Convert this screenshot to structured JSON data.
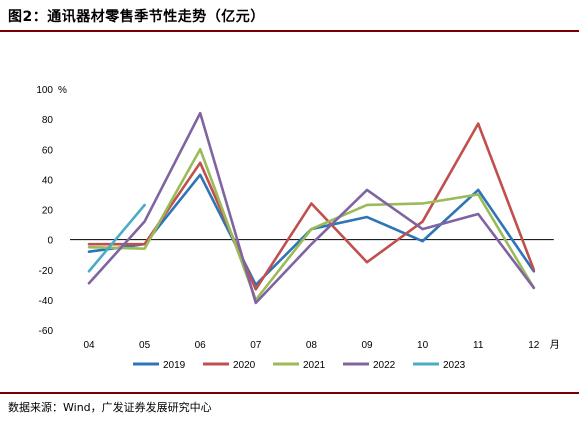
{
  "header": {
    "title": "图2：通讯器材零售季节性走势（亿元）"
  },
  "footer": {
    "source": "数据来源：Wind，广发证券发展研究中心"
  },
  "chart_data": {
    "type": "line",
    "title": "图2：通讯器材零售季节性走势（亿元）",
    "xlabel": "月",
    "ylabel": "%",
    "categories": [
      "04",
      "05",
      "06",
      "07",
      "08",
      "09",
      "10",
      "11",
      "12"
    ],
    "ylim": [
      -60,
      100
    ],
    "yticks": [
      -60,
      -40,
      -20,
      0,
      20,
      40,
      60,
      80,
      100
    ],
    "grid": false,
    "legend": "bottom",
    "series": [
      {
        "name": "2019",
        "color": "#2e75b6",
        "values": [
          -8,
          -3,
          43,
          -30,
          7,
          15,
          -1,
          33,
          -21
        ]
      },
      {
        "name": "2020",
        "color": "#c0504d",
        "values": [
          -3,
          -3,
          51,
          -33,
          24,
          -15,
          12,
          77,
          -20
        ]
      },
      {
        "name": "2021",
        "color": "#9bbb59",
        "values": [
          -5,
          -6,
          60,
          -40,
          7,
          23,
          24,
          30,
          -32
        ]
      },
      {
        "name": "2022",
        "color": "#8064a2",
        "values": [
          -29,
          12,
          84,
          -42,
          -3,
          33,
          7,
          17,
          -32
        ]
      },
      {
        "name": "2023",
        "color": "#4bacc6",
        "values": [
          -21,
          23,
          null,
          null,
          null,
          null,
          null,
          null,
          null
        ]
      }
    ]
  }
}
